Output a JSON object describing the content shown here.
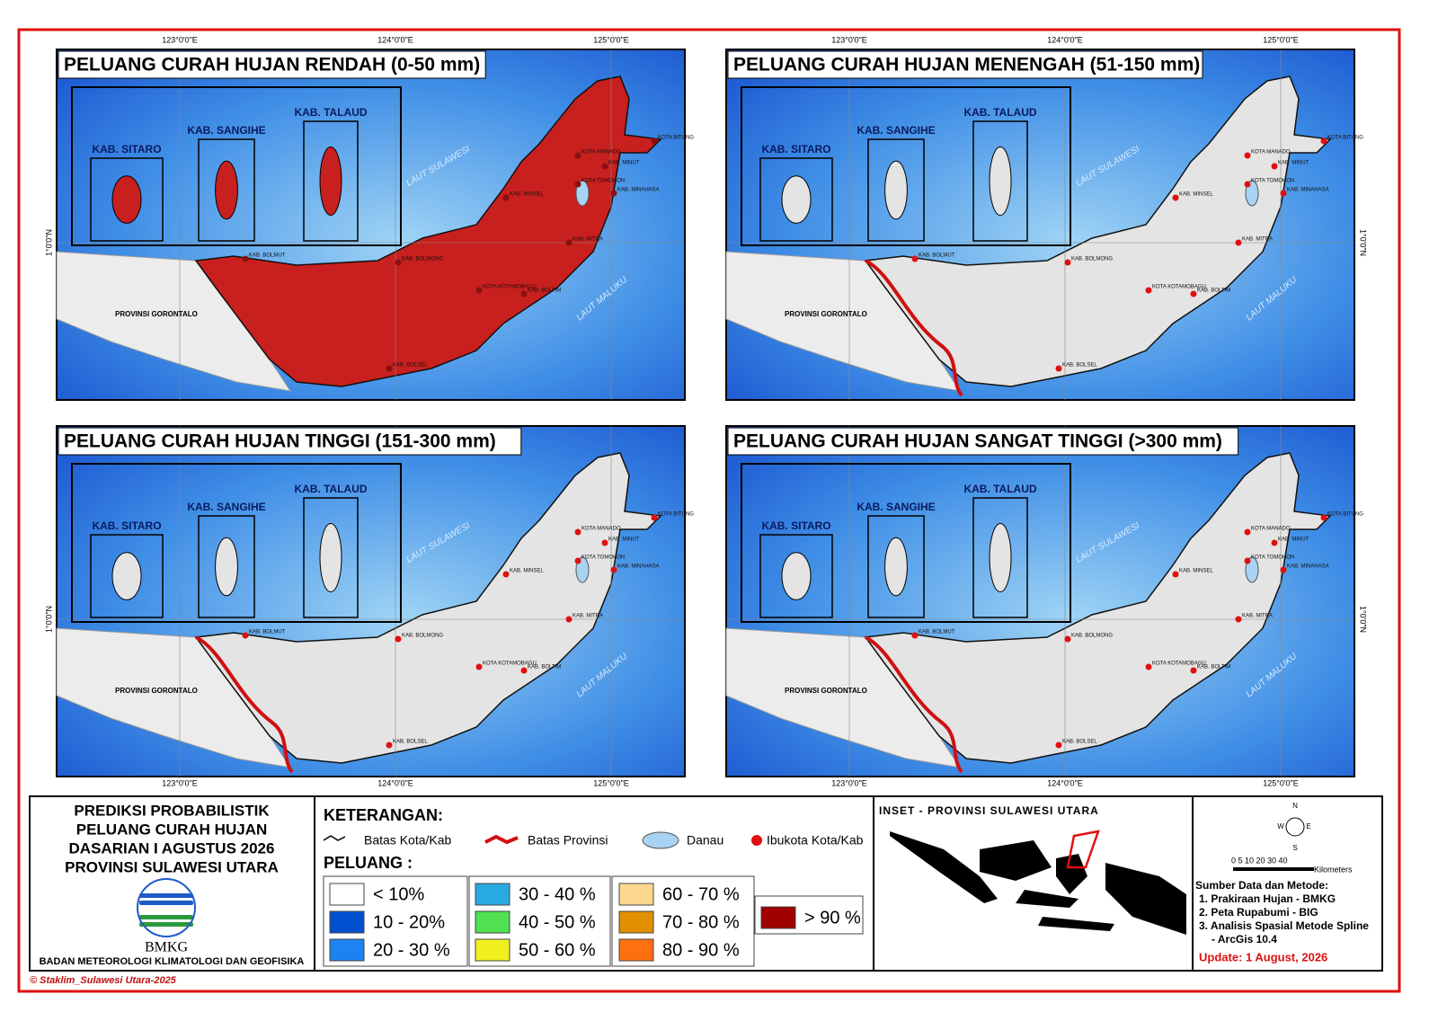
{
  "panels": [
    {
      "title": "PELUANG CURAH HUJAN RENDAH (0-50 mm)",
      "land_color": "#c8201e"
    },
    {
      "title": "PELUANG CURAH HUJAN MENENGAH (51-150 mm)",
      "land_color": "#e4e4e4"
    },
    {
      "title": "PELUANG CURAH HUJAN TINGGI (151-300 mm)",
      "land_color": "#e4e4e4"
    },
    {
      "title": "PELUANG CURAH HUJAN SANGAT TINGGI (>300 mm)",
      "land_color": "#e4e4e4"
    }
  ],
  "coordinates": {
    "lon": [
      "123°0'0\"E",
      "124°0'0\"E",
      "125°0'0\"E"
    ],
    "lat": "1°0'0\"N"
  },
  "inset_boxes": [
    "KAB. SITARO",
    "KAB. SANGIHE",
    "KAB. TALAUD"
  ],
  "places": [
    "KOTA MANADO",
    "KAB. MINUT",
    "KOTA BITUNG",
    "KOTA TOMOHON",
    "KAB. MINAHASA",
    "KAB. MINSEL",
    "KAB. MITRA",
    "KAB. BOLMUT",
    "KAB. BOLMONG",
    "KOTA KOTAMOBAGU",
    "KAB. BOLTIM",
    "KAB. BOLSEL"
  ],
  "regions": {
    "gorontalo": "PROVINSI GORONTALO",
    "sea_north": "LAUT SULAWESI",
    "sea_east": "LAUT MALUKU"
  },
  "title_block": {
    "lines": [
      "PREDIKSI PROBABILISTIK",
      "PELUANG CURAH HUJAN",
      "DASARIAN I AGUSTUS 2026",
      "PROVINSI SULAWESI UTARA"
    ],
    "logo": "BMKG",
    "agency": "BADAN METEOROLOGI KLIMATOLOGI DAN GEOFISIKA"
  },
  "legend": {
    "title": "KETERANGAN:",
    "symbols": [
      "Batas Kota/Kab",
      "Batas Provinsi",
      "Danau",
      "Ibukota Kota/Kab"
    ],
    "class_title": "PELUANG :",
    "classes": [
      {
        "label": "< 10%",
        "color": "#ffffff"
      },
      {
        "label": "10 - 20%",
        "color": "#0050d0"
      },
      {
        "label": "20 - 30 %",
        "color": "#1e82f0"
      },
      {
        "label": "30 - 40 %",
        "color": "#28aae0"
      },
      {
        "label": "40 - 50 %",
        "color": "#50e050"
      },
      {
        "label": "50 - 60 %",
        "color": "#f0f020"
      },
      {
        "label": "60 - 70 %",
        "color": "#ffd890"
      },
      {
        "label": "70 - 80 %",
        "color": "#e09000"
      },
      {
        "label": "80 - 90 %",
        "color": "#ff7010"
      },
      {
        "label": "> 90 %",
        "color": "#a00000"
      }
    ]
  },
  "inset": {
    "title": "INSET - PROVINSI SULAWESI UTARA"
  },
  "compass": [
    "N",
    "E",
    "S",
    "W"
  ],
  "scale": {
    "ticks": "0 5 10  20  30  40",
    "unit": "Kilometers"
  },
  "sources": {
    "title": "Sumber Data dan Metode:",
    "items": [
      "1. Prakiraan Hujan - BMKG",
      "2. Peta Rupabumi - BIG",
      "3. Analisis Spasial Metode Spline",
      "- ArcGis 10.4"
    ],
    "update": "Update: 1 August, 2026"
  },
  "copyright": "© Staklim_Sulawesi Utara-2025"
}
